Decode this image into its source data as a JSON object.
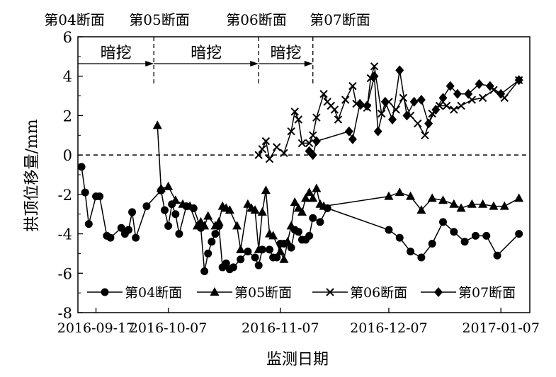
{
  "chart_data": {
    "type": "line",
    "title": "",
    "xlabel": "监测日期",
    "ylabel": "拱顶位移量/mm",
    "x_tick_labels": [
      "2016-09-17",
      "2016-10-07",
      "2016-11-07",
      "2016-12-07",
      "2017-01-07"
    ],
    "x_range": [
      "2016-09-12",
      "2017-01-15"
    ],
    "ylim": [
      -8,
      6
    ],
    "y_ticks": [
      6,
      4,
      2,
      0,
      -2,
      -4,
      -6,
      -8
    ],
    "grid": false,
    "legend_position": "bottom-inside",
    "reference_line": {
      "y": 0,
      "style": "dashed"
    },
    "section_markers": [
      {
        "label": "第04断面",
        "date": ""
      },
      {
        "label": "第05断面",
        "date": "2016-10-03"
      },
      {
        "label": "第06断面",
        "date": "2016-11-01"
      },
      {
        "label": "第07断面",
        "date": "2016-11-16"
      }
    ],
    "excavation_spans": [
      {
        "label": "暗挖",
        "from": "2016-09-12",
        "to": "2016-10-03"
      },
      {
        "label": "暗挖",
        "from": "2016-10-03",
        "to": "2016-11-01"
      },
      {
        "label": "暗挖",
        "from": "2016-11-01",
        "to": "2016-11-16"
      }
    ],
    "series": [
      {
        "name": "第04断面",
        "marker": "circle",
        "points": [
          [
            "2016-09-13",
            -0.6
          ],
          [
            "2016-09-14",
            -1.9
          ],
          [
            "2016-09-15",
            -3.5
          ],
          [
            "2016-09-17",
            -2.1
          ],
          [
            "2016-09-18",
            -2.1
          ],
          [
            "2016-09-20",
            -4.1
          ],
          [
            "2016-09-21",
            -4.2
          ],
          [
            "2016-09-24",
            -3.7
          ],
          [
            "2016-09-25",
            -4.0
          ],
          [
            "2016-09-26",
            -3.8
          ],
          [
            "2016-09-27",
            -2.9
          ],
          [
            "2016-09-28",
            -4.2
          ],
          [
            "2016-10-01",
            -2.6
          ],
          [
            "2016-10-05",
            -1.8
          ],
          [
            "2016-10-06",
            -2.8
          ],
          [
            "2016-10-07",
            -3.6
          ],
          [
            "2016-10-08",
            -2.5
          ],
          [
            "2016-10-09",
            -3.0
          ],
          [
            "2016-10-10",
            -4.0
          ],
          [
            "2016-10-12",
            -2.6
          ],
          [
            "2016-10-14",
            -2.7
          ],
          [
            "2016-10-16",
            -3.7
          ],
          [
            "2016-10-17",
            -5.9
          ],
          [
            "2016-10-18",
            -5.0
          ],
          [
            "2016-10-19",
            -4.4
          ],
          [
            "2016-10-20",
            -4.0
          ],
          [
            "2016-10-21",
            -3.6
          ],
          [
            "2016-10-22",
            -5.7
          ],
          [
            "2016-10-23",
            -5.5
          ],
          [
            "2016-10-24",
            -5.8
          ],
          [
            "2016-10-25",
            -5.7
          ],
          [
            "2016-10-27",
            -5.3
          ],
          [
            "2016-10-29",
            -4.9
          ],
          [
            "2016-10-31",
            -5.2
          ],
          [
            "2016-11-01",
            -5.6
          ],
          [
            "2016-11-02",
            -4.8
          ],
          [
            "2016-11-04",
            -4.8
          ],
          [
            "2016-11-05",
            -5.2
          ],
          [
            "2016-11-06",
            -5.2
          ],
          [
            "2016-11-07",
            -4.5
          ],
          [
            "2016-11-08",
            -4.5
          ],
          [
            "2016-11-10",
            -4.7
          ],
          [
            "2016-11-11",
            -3.8
          ],
          [
            "2016-11-12",
            -3.9
          ],
          [
            "2016-11-13",
            -4.3
          ],
          [
            "2016-11-14",
            -4.3
          ],
          [
            "2016-11-15",
            -4.1
          ],
          [
            "2016-11-16",
            -3.2
          ],
          [
            "2016-11-18",
            -3.4
          ],
          [
            "2016-11-20",
            -2.7
          ],
          [
            "2016-12-07",
            -3.8
          ],
          [
            "2016-12-10",
            -4.2
          ],
          [
            "2016-12-13",
            -4.9
          ],
          [
            "2016-12-16",
            -5.2
          ],
          [
            "2016-12-19",
            -4.5
          ],
          [
            "2016-12-22",
            -3.4
          ],
          [
            "2016-12-25",
            -3.9
          ],
          [
            "2016-12-28",
            -4.4
          ],
          [
            "2016-12-31",
            -4.1
          ],
          [
            "2017-01-03",
            -4.1
          ],
          [
            "2017-01-06",
            -5.1
          ],
          [
            "2017-01-12",
            -4.0
          ]
        ]
      },
      {
        "name": "第05断面",
        "marker": "triangle",
        "points": [
          [
            "2016-10-04",
            1.5
          ],
          [
            "2016-10-05",
            -1.7
          ],
          [
            "2016-10-07",
            -1.6
          ],
          [
            "2016-10-09",
            -2.3
          ],
          [
            "2016-10-11",
            -2.5
          ],
          [
            "2016-10-13",
            -2.6
          ],
          [
            "2016-10-15",
            -3.6
          ],
          [
            "2016-10-16",
            -3.4
          ],
          [
            "2016-10-17",
            -3.6
          ],
          [
            "2016-10-18",
            -3.1
          ],
          [
            "2016-10-20",
            -3.6
          ],
          [
            "2016-10-21",
            -3.4
          ],
          [
            "2016-10-22",
            -2.6
          ],
          [
            "2016-10-23",
            -2.7
          ],
          [
            "2016-10-24",
            -2.8
          ],
          [
            "2016-10-26",
            -3.6
          ],
          [
            "2016-10-27",
            -4.8
          ],
          [
            "2016-10-29",
            -2.5
          ],
          [
            "2016-10-30",
            -2.7
          ],
          [
            "2016-10-31",
            -2.8
          ],
          [
            "2016-11-01",
            -4.8
          ],
          [
            "2016-11-02",
            -2.9
          ],
          [
            "2016-11-03",
            -1.8
          ],
          [
            "2016-11-04",
            -4.0
          ],
          [
            "2016-11-05",
            -4.1
          ],
          [
            "2016-11-07",
            -4.9
          ],
          [
            "2016-11-08",
            -5.3
          ],
          [
            "2016-11-09",
            -4.4
          ],
          [
            "2016-11-10",
            -3.6
          ],
          [
            "2016-11-11",
            -2.4
          ],
          [
            "2016-11-12",
            -2.7
          ],
          [
            "2016-11-13",
            -2.9
          ],
          [
            "2016-11-14",
            -2.2
          ],
          [
            "2016-11-15",
            -1.9
          ],
          [
            "2016-11-16",
            -2.2
          ],
          [
            "2016-11-17",
            -1.7
          ],
          [
            "2016-11-18",
            -2.5
          ],
          [
            "2016-11-19",
            -2.6
          ],
          [
            "2016-12-07",
            -2.1
          ],
          [
            "2016-12-10",
            -1.9
          ],
          [
            "2016-12-13",
            -2.1
          ],
          [
            "2016-12-16",
            -2.8
          ],
          [
            "2016-12-19",
            -2.2
          ],
          [
            "2016-12-22",
            -2.3
          ],
          [
            "2016-12-25",
            -2.5
          ],
          [
            "2016-12-27",
            -2.7
          ],
          [
            "2016-12-30",
            -2.5
          ],
          [
            "2017-01-02",
            -2.5
          ],
          [
            "2017-01-05",
            -2.6
          ],
          [
            "2017-01-08",
            -2.6
          ],
          [
            "2017-01-12",
            -2.2
          ]
        ]
      },
      {
        "name": "第06断面",
        "marker": "x",
        "points": [
          [
            "2016-11-01",
            0.0
          ],
          [
            "2016-11-02",
            0.3
          ],
          [
            "2016-11-03",
            0.7
          ],
          [
            "2016-11-04",
            -0.2
          ],
          [
            "2016-11-06",
            0.4
          ],
          [
            "2016-11-08",
            0.1
          ],
          [
            "2016-11-10",
            1.2
          ],
          [
            "2016-11-11",
            2.2
          ],
          [
            "2016-11-12",
            1.8
          ],
          [
            "2016-11-13",
            0.6
          ],
          [
            "2016-11-15",
            0.6
          ],
          [
            "2016-11-16",
            1.0
          ],
          [
            "2016-11-17",
            1.9
          ],
          [
            "2016-11-19",
            3.1
          ],
          [
            "2016-11-20",
            2.7
          ],
          [
            "2016-11-21",
            2.5
          ],
          [
            "2016-11-22",
            2.3
          ],
          [
            "2016-11-23",
            1.8
          ],
          [
            "2016-11-25",
            2.8
          ],
          [
            "2016-11-27",
            3.5
          ],
          [
            "2016-11-28",
            2.6
          ],
          [
            "2016-11-30",
            2.5
          ],
          [
            "2016-12-01",
            2.4
          ],
          [
            "2016-12-02",
            3.9
          ],
          [
            "2016-12-03",
            4.5
          ],
          [
            "2016-12-05",
            2.1
          ],
          [
            "2016-12-07",
            2.7
          ],
          [
            "2016-12-09",
            2.3
          ],
          [
            "2016-12-11",
            2.9
          ],
          [
            "2016-12-13",
            2.0
          ],
          [
            "2016-12-15",
            1.6
          ],
          [
            "2016-12-17",
            1.0
          ],
          [
            "2016-12-19",
            2.1
          ],
          [
            "2016-12-21",
            2.5
          ],
          [
            "2016-12-23",
            2.5
          ],
          [
            "2016-12-25",
            2.3
          ],
          [
            "2016-12-27",
            2.5
          ],
          [
            "2016-12-30",
            2.8
          ],
          [
            "2017-01-02",
            2.9
          ],
          [
            "2017-01-05",
            3.3
          ],
          [
            "2017-01-08",
            2.9
          ],
          [
            "2017-01-12",
            3.8
          ]
        ]
      },
      {
        "name": "第07断面",
        "marker": "diamond",
        "points": [
          [
            "2016-11-15",
            0.2
          ],
          [
            "2016-11-16",
            0.0
          ],
          [
            "2016-11-17",
            0.7
          ],
          [
            "2016-11-26",
            1.2
          ],
          [
            "2016-11-27",
            0.8
          ],
          [
            "2016-11-29",
            2.6
          ],
          [
            "2016-12-01",
            2.5
          ],
          [
            "2016-12-03",
            4.0
          ],
          [
            "2016-12-04",
            1.2
          ],
          [
            "2016-12-06",
            2.7
          ],
          [
            "2016-12-08",
            1.8
          ],
          [
            "2016-12-10",
            4.3
          ],
          [
            "2016-12-12",
            2.0
          ],
          [
            "2016-12-14",
            2.7
          ],
          [
            "2016-12-16",
            2.8
          ],
          [
            "2016-12-18",
            1.6
          ],
          [
            "2016-12-20",
            2.3
          ],
          [
            "2016-12-22",
            2.9
          ],
          [
            "2016-12-24",
            3.5
          ],
          [
            "2016-12-26",
            3.1
          ],
          [
            "2016-12-29",
            3.1
          ],
          [
            "2017-01-01",
            3.6
          ],
          [
            "2017-01-04",
            3.5
          ],
          [
            "2017-01-07",
            3.1
          ],
          [
            "2017-01-12",
            3.8
          ]
        ]
      }
    ]
  }
}
